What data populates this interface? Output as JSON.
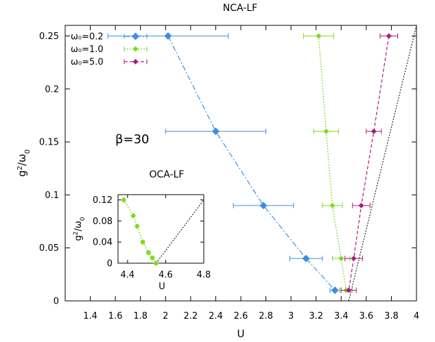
{
  "chart_data": [
    {
      "type": "scatter",
      "title": "NCA-LF",
      "xlabel": "U",
      "ylabel": "g²/ω₀",
      "xlim": [
        1.2,
        4.0
      ],
      "ylim": [
        0,
        0.26
      ],
      "xticks": [
        1.4,
        1.6,
        1.8,
        2,
        2.2,
        2.4,
        2.6,
        2.8,
        3,
        3.2,
        3.4,
        3.6,
        3.8,
        4
      ],
      "xtick_labels": [
        "1.4",
        "1.6",
        "1.8",
        "2",
        "2.2",
        "2.4",
        "2.6",
        "2.8",
        "3",
        "3.2",
        "3.4",
        "3.6",
        "3.8",
        "4"
      ],
      "yticks": [
        0,
        0.05,
        0.1,
        0.15,
        0.2,
        0.25
      ],
      "ytick_labels": [
        "0",
        "0.05",
        "0.1",
        "0.15",
        "0.2",
        "0.25"
      ],
      "annotation": "β=30",
      "annotation_color": "#e32020",
      "legend_position": "top-left",
      "series": [
        {
          "name": "ω₀=0.2",
          "color": "#3c8fe0",
          "line_style": "dash-dot",
          "marker": "diamond",
          "points": [
            {
              "x": 2.02,
              "y": 0.25,
              "xerr": 0.48
            },
            {
              "x": 2.4,
              "y": 0.16,
              "xerr": 0.4
            },
            {
              "x": 2.78,
              "y": 0.09,
              "xerr": 0.24
            },
            {
              "x": 3.12,
              "y": 0.04,
              "xerr": 0.13
            },
            {
              "x": 3.35,
              "y": 0.01,
              "xerr": 0.04
            }
          ]
        },
        {
          "name": "ω₀=1.0",
          "color": "#7cdc1c",
          "line_style": "dotted",
          "marker": "diamond",
          "points": [
            {
              "x": 3.22,
              "y": 0.25,
              "xerr": 0.12
            },
            {
              "x": 3.28,
              "y": 0.16,
              "xerr": 0.1
            },
            {
              "x": 3.33,
              "y": 0.09,
              "xerr": 0.08
            },
            {
              "x": 3.4,
              "y": 0.04,
              "xerr": 0.07
            },
            {
              "x": 3.44,
              "y": 0.01,
              "xerr": 0.05
            }
          ]
        },
        {
          "name": "ω₀=5.0",
          "color": "#b0177a",
          "line_style": "dashed",
          "marker": "diamond",
          "points": [
            {
              "x": 3.78,
              "y": 0.25,
              "xerr": 0.07
            },
            {
              "x": 3.66,
              "y": 0.16,
              "xerr": 0.06
            },
            {
              "x": 3.56,
              "y": 0.09,
              "xerr": 0.07
            },
            {
              "x": 3.5,
              "y": 0.04,
              "xerr": 0.07
            },
            {
              "x": 3.46,
              "y": 0.01,
              "xerr": 0.06
            }
          ]
        }
      ],
      "reference_line": {
        "style": "dotted",
        "color": "#000000",
        "from": {
          "x": 3.46,
          "y": 0
        },
        "to": {
          "x": 4.0,
          "y": 0.26
        }
      }
    },
    {
      "type": "scatter",
      "title": "OCA-LF",
      "xlabel": "U",
      "ylabel": "g²/ω₀",
      "xlim": [
        4.35,
        4.8
      ],
      "ylim": [
        0,
        0.13
      ],
      "xticks": [
        4.4,
        4.6,
        4.8
      ],
      "xtick_labels": [
        "4.4",
        "4.6",
        "4.8"
      ],
      "yticks": [
        0,
        0.04,
        0.08,
        0.12
      ],
      "ytick_labels": [
        "0",
        "0.04",
        "0.08",
        "0.12"
      ],
      "series": [
        {
          "name": "",
          "color": "#7cdc1c",
          "line_style": "dotted",
          "marker": "diamond",
          "points": [
            {
              "x": 4.38,
              "y": 0.12,
              "xerr": 0.006
            },
            {
              "x": 4.43,
              "y": 0.09,
              "xerr": 0.006
            },
            {
              "x": 4.45,
              "y": 0.07,
              "xerr": 0.006
            },
            {
              "x": 4.48,
              "y": 0.04,
              "xerr": 0.008
            },
            {
              "x": 4.51,
              "y": 0.02,
              "xerr": 0.008
            },
            {
              "x": 4.53,
              "y": 0.01,
              "xerr": 0.008
            },
            {
              "x": 4.55,
              "y": 0.0,
              "xerr": 0.008
            }
          ]
        }
      ],
      "reference_line": {
        "style": "dotted",
        "color": "#000000",
        "from": {
          "x": 4.55,
          "y": 0
        },
        "to": {
          "x": 4.8,
          "y": 0.12
        }
      }
    }
  ]
}
